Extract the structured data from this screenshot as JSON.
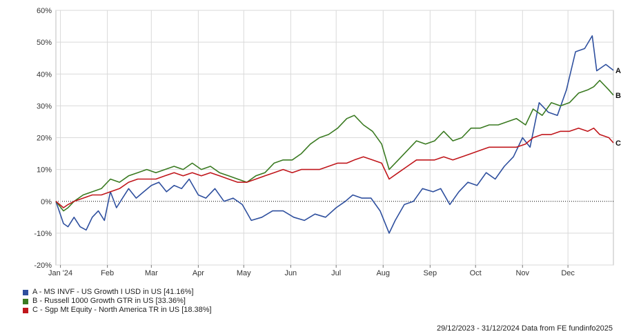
{
  "chart_data": {
    "type": "line",
    "title": "",
    "xlabel": "",
    "ylabel": "",
    "ylim": [
      -20,
      60
    ],
    "y_ticks": [
      -20,
      -10,
      0,
      10,
      20,
      30,
      40,
      50,
      60
    ],
    "y_tick_labels": [
      "-20%",
      "-10%",
      "0%",
      "10%",
      "20%",
      "30%",
      "40%",
      "50%",
      "60%"
    ],
    "x_ticks": [
      "2024-01-01",
      "2024-02-01",
      "2024-03-01",
      "2024-04-01",
      "2024-05-01",
      "2024-06-01",
      "2024-07-01",
      "2024-08-01",
      "2024-09-01",
      "2024-10-01",
      "2024-11-01",
      "2024-12-01"
    ],
    "x_tick_labels": [
      "Jan '24",
      "Feb",
      "Mar",
      "Apr",
      "May",
      "Jun",
      "Jul",
      "Aug",
      "Sep",
      "Oct",
      "Nov",
      "Dec"
    ],
    "xlim": [
      "2023-12-29",
      "2024-12-31"
    ],
    "grid": true,
    "zero_line": "dotted",
    "legend_position": "bottom-left",
    "series": [
      {
        "name": "A - MS INVF - US Growth I USD in US [41.16%]",
        "end_label": "A",
        "color": "#2e4f9e",
        "x": [
          "2023-12-29",
          "2024-01-03",
          "2024-01-06",
          "2024-01-10",
          "2024-01-14",
          "2024-01-18",
          "2024-01-22",
          "2024-01-26",
          "2024-01-30",
          "2024-02-03",
          "2024-02-07",
          "2024-02-11",
          "2024-02-15",
          "2024-02-20",
          "2024-02-25",
          "2024-03-01",
          "2024-03-06",
          "2024-03-11",
          "2024-03-16",
          "2024-03-21",
          "2024-03-26",
          "2024-04-01",
          "2024-04-06",
          "2024-04-12",
          "2024-04-18",
          "2024-04-24",
          "2024-04-30",
          "2024-05-06",
          "2024-05-13",
          "2024-05-20",
          "2024-05-27",
          "2024-06-03",
          "2024-06-10",
          "2024-06-17",
          "2024-06-24",
          "2024-07-01",
          "2024-07-07",
          "2024-07-12",
          "2024-07-18",
          "2024-07-24",
          "2024-07-30",
          "2024-08-05",
          "2024-08-09",
          "2024-08-15",
          "2024-08-21",
          "2024-08-27",
          "2024-09-03",
          "2024-09-08",
          "2024-09-14",
          "2024-09-20",
          "2024-09-26",
          "2024-10-02",
          "2024-10-08",
          "2024-10-14",
          "2024-10-20",
          "2024-10-26",
          "2024-11-01",
          "2024-11-06",
          "2024-11-12",
          "2024-11-18",
          "2024-11-24",
          "2024-11-30",
          "2024-12-06",
          "2024-12-12",
          "2024-12-17",
          "2024-12-20",
          "2024-12-26",
          "2024-12-31"
        ],
        "y": [
          0,
          -7,
          -8,
          -5,
          -8,
          -9,
          -5,
          -3,
          -6,
          3,
          -2,
          1,
          4,
          1,
          3,
          5,
          6,
          3,
          5,
          4,
          7,
          2,
          1,
          4,
          0,
          1,
          -1,
          -6,
          -5,
          -3,
          -3,
          -5,
          -6,
          -4,
          -5,
          -2,
          0,
          2,
          1,
          1,
          -3,
          -10,
          -6,
          -1,
          0,
          4,
          3,
          4,
          -1,
          3,
          6,
          5,
          9,
          7,
          11,
          14,
          20,
          17,
          31,
          28,
          27,
          35,
          47,
          48,
          52,
          41,
          43,
          41.16
        ]
      },
      {
        "name": "B - Russell 1000 Growth GTR in US [33.36%]",
        "end_label": "B",
        "color": "#3a7a21",
        "x": [
          "2023-12-29",
          "2024-01-03",
          "2024-01-06",
          "2024-01-10",
          "2024-01-16",
          "2024-01-22",
          "2024-01-28",
          "2024-02-03",
          "2024-02-09",
          "2024-02-15",
          "2024-02-21",
          "2024-02-27",
          "2024-03-04",
          "2024-03-10",
          "2024-03-16",
          "2024-03-22",
          "2024-03-28",
          "2024-04-03",
          "2024-04-09",
          "2024-04-15",
          "2024-04-21",
          "2024-04-27",
          "2024-05-03",
          "2024-05-09",
          "2024-05-15",
          "2024-05-21",
          "2024-05-27",
          "2024-06-02",
          "2024-06-08",
          "2024-06-14",
          "2024-06-20",
          "2024-06-26",
          "2024-07-02",
          "2024-07-08",
          "2024-07-13",
          "2024-07-19",
          "2024-07-25",
          "2024-07-31",
          "2024-08-05",
          "2024-08-11",
          "2024-08-17",
          "2024-08-23",
          "2024-08-29",
          "2024-09-04",
          "2024-09-10",
          "2024-09-16",
          "2024-09-22",
          "2024-09-28",
          "2024-10-04",
          "2024-10-10",
          "2024-10-16",
          "2024-10-22",
          "2024-10-28",
          "2024-11-03",
          "2024-11-08",
          "2024-11-14",
          "2024-11-20",
          "2024-11-26",
          "2024-12-02",
          "2024-12-08",
          "2024-12-14",
          "2024-12-18",
          "2024-12-22",
          "2024-12-28",
          "2024-12-31"
        ],
        "y": [
          0,
          -3,
          -2,
          0,
          2,
          3,
          4,
          7,
          6,
          8,
          9,
          10,
          9,
          10,
          11,
          10,
          12,
          10,
          11,
          9,
          8,
          7,
          6,
          8,
          9,
          12,
          13,
          13,
          15,
          18,
          20,
          21,
          23,
          26,
          27,
          24,
          22,
          18,
          10,
          13,
          16,
          19,
          18,
          19,
          22,
          19,
          20,
          23,
          23,
          24,
          24,
          25,
          26,
          24,
          29,
          27,
          31,
          30,
          31,
          34,
          35,
          36,
          38,
          35,
          33.36
        ]
      },
      {
        "name": "C - Sgp Mt Equity - North America TR in US [18.38%]",
        "end_label": "C",
        "color": "#c0161b",
        "x": [
          "2023-12-29",
          "2024-01-03",
          "2024-01-06",
          "2024-01-10",
          "2024-01-16",
          "2024-01-22",
          "2024-01-28",
          "2024-02-03",
          "2024-02-09",
          "2024-02-15",
          "2024-02-21",
          "2024-02-27",
          "2024-03-04",
          "2024-03-10",
          "2024-03-16",
          "2024-03-22",
          "2024-03-28",
          "2024-04-03",
          "2024-04-09",
          "2024-04-15",
          "2024-04-21",
          "2024-04-27",
          "2024-05-03",
          "2024-05-09",
          "2024-05-15",
          "2024-05-21",
          "2024-05-27",
          "2024-06-02",
          "2024-06-08",
          "2024-06-14",
          "2024-06-20",
          "2024-06-26",
          "2024-07-02",
          "2024-07-08",
          "2024-07-13",
          "2024-07-19",
          "2024-07-25",
          "2024-07-31",
          "2024-08-05",
          "2024-08-11",
          "2024-08-17",
          "2024-08-23",
          "2024-08-29",
          "2024-09-04",
          "2024-09-10",
          "2024-09-16",
          "2024-09-22",
          "2024-09-28",
          "2024-10-04",
          "2024-10-10",
          "2024-10-16",
          "2024-10-22",
          "2024-10-28",
          "2024-11-03",
          "2024-11-08",
          "2024-11-14",
          "2024-11-20",
          "2024-11-26",
          "2024-12-02",
          "2024-12-08",
          "2024-12-14",
          "2024-12-18",
          "2024-12-22",
          "2024-12-28",
          "2024-12-31"
        ],
        "y": [
          0,
          -2,
          -1,
          0,
          1,
          2,
          2,
          3,
          4,
          6,
          7,
          7,
          7,
          8,
          9,
          8,
          9,
          8,
          9,
          8,
          7,
          6,
          6,
          7,
          8,
          9,
          10,
          9,
          10,
          10,
          10,
          11,
          12,
          12,
          13,
          14,
          13,
          12,
          7,
          9,
          11,
          13,
          13,
          13,
          14,
          13,
          14,
          15,
          16,
          17,
          17,
          17,
          17,
          18,
          20,
          21,
          21,
          22,
          22,
          23,
          22,
          23,
          21,
          20,
          18.38
        ]
      }
    ]
  },
  "footer": {
    "source": "29/12/2023 - 31/12/2024 Data from FE fundinfo2025"
  }
}
